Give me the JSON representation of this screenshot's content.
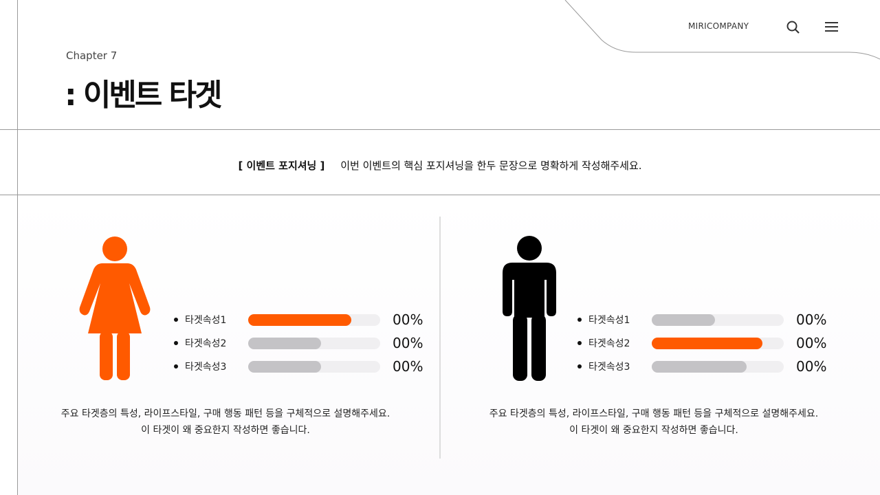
{
  "header": {
    "brand": "MIRICOMPANY",
    "chapter": "Chapter 7",
    "title": ": 이벤트 타겟"
  },
  "positioning": {
    "label": "[ 이벤트 포지셔닝 ]",
    "text": "이번 이벤트의 핵심 포지셔닝을 한두 문장으로 명확하게 작성해주세요."
  },
  "colors": {
    "accent": "#ff5a00",
    "gray": "#c4c3c6",
    "track": "#f0eff1"
  },
  "targets": [
    {
      "icon": "female-figure-icon",
      "color": "#ff5a00",
      "description": "주요 타겟층의 특성, 라이프스타일, 구매 행동 패턴 등을 구체적으로 설명해주세요. 이 타겟이 왜 중요한지 작성하면 좋습니다.",
      "attributes": [
        {
          "label": "타겟속성1",
          "value": "00%",
          "fill": 78,
          "highlight": true
        },
        {
          "label": "타겟속성2",
          "value": "00%",
          "fill": 55,
          "highlight": false
        },
        {
          "label": "타겟속성3",
          "value": "00%",
          "fill": 55,
          "highlight": false
        }
      ]
    },
    {
      "icon": "male-figure-icon",
      "color": "#000000",
      "description": "주요 타겟층의 특성, 라이프스타일, 구매 행동 패턴 등을 구체적으로 설명해주세요. 이 타겟이 왜 중요한지 작성하면 좋습니다.",
      "attributes": [
        {
          "label": "타겟속성1",
          "value": "00%",
          "fill": 48,
          "highlight": false
        },
        {
          "label": "타겟속성2",
          "value": "00%",
          "fill": 84,
          "highlight": true
        },
        {
          "label": "타겟속성3",
          "value": "00%",
          "fill": 72,
          "highlight": false
        }
      ]
    }
  ]
}
